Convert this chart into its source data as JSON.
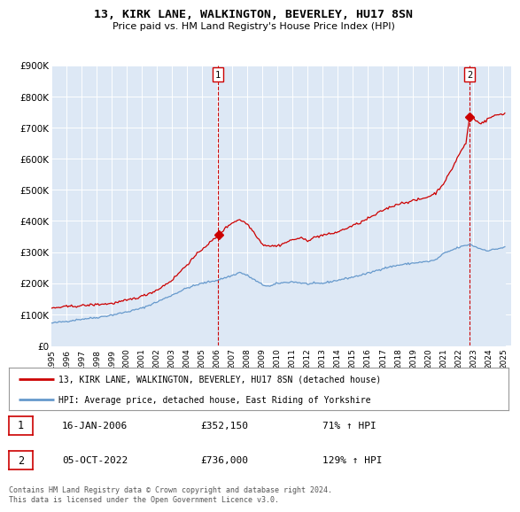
{
  "title": "13, KIRK LANE, WALKINGTON, BEVERLEY, HU17 8SN",
  "subtitle": "Price paid vs. HM Land Registry's House Price Index (HPI)",
  "ylim": [
    0,
    900000
  ],
  "yticks": [
    0,
    100000,
    200000,
    300000,
    400000,
    500000,
    600000,
    700000,
    800000,
    900000
  ],
  "ytick_labels": [
    "£0",
    "£100K",
    "£200K",
    "£300K",
    "£400K",
    "£500K",
    "£600K",
    "£700K",
    "£800K",
    "£900K"
  ],
  "property_color": "#cc0000",
  "hpi_color": "#6699cc",
  "hpi_fill_color": "#dde8f5",
  "legend_property": "13, KIRK LANE, WALKINGTON, BEVERLEY, HU17 8SN (detached house)",
  "legend_hpi": "HPI: Average price, detached house, East Riding of Yorkshire",
  "sale1_date": "16-JAN-2006",
  "sale1_price": 352150,
  "sale1_label": "71% ↑ HPI",
  "sale2_date": "05-OCT-2022",
  "sale2_price": 736000,
  "sale2_label": "129% ↑ HPI",
  "footer": "Contains HM Land Registry data © Crown copyright and database right 2024.\nThis data is licensed under the Open Government Licence v3.0.",
  "sale1_x": 2006.05,
  "sale2_x": 2022.75,
  "background_color": "#ffffff",
  "grid_color": "#cccccc",
  "plot_bg_color": "#dde8f5"
}
